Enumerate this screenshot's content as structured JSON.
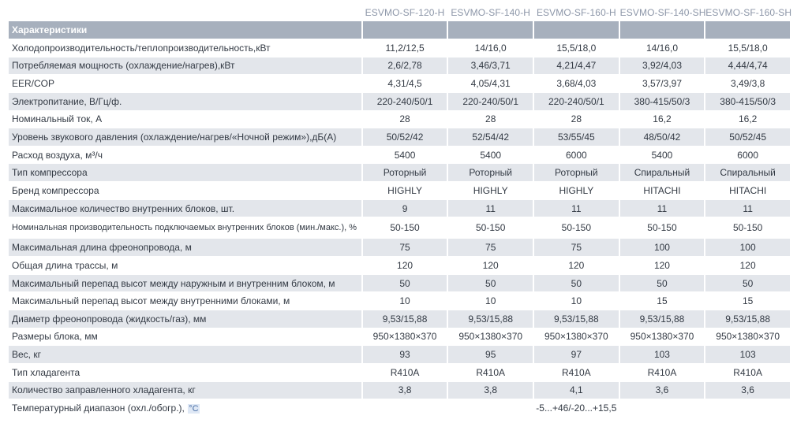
{
  "models": [
    "ESVMO-SF-120-H",
    "ESVMO-SF-140-H",
    "ESVMO-SF-160-H",
    "ESVMO-SF-140-SH",
    "ESVMO-SF-160-SH"
  ],
  "header_label": "Характеристики",
  "rows": [
    {
      "label": "Холодопроизводительность/теплопроизводительность,кВт",
      "values": [
        "11,2/12,5",
        "14/16,0",
        "15,5/18,0",
        "14/16,0",
        "15,5/18,0"
      ]
    },
    {
      "label": "Потребляемая мощность (охлаждение/нагрев),кВт",
      "values": [
        "2,6/2,78",
        "3,46/3,71",
        "4,21/4,47",
        "3,92/4,03",
        "4,44/4,74"
      ]
    },
    {
      "label": "EER/COP",
      "values": [
        "4,31/4,5",
        "4,05/4,31",
        "3,68/4,03",
        "3,57/3,97",
        "3,49/3,8"
      ]
    },
    {
      "label": "Электропитание, В/Гц/ф.",
      "values": [
        "220-240/50/1",
        "220-240/50/1",
        "220-240/50/1",
        "380-415/50/3",
        "380-415/50/3"
      ]
    },
    {
      "label": "Номинальный ток, А",
      "values": [
        "28",
        "28",
        "28",
        "16,2",
        "16,2"
      ]
    },
    {
      "label": "Уровень звукового давления (охлаждение/нагрев/«Ночной режим»),дБ(А)",
      "values": [
        "50/52/42",
        "52/54/42",
        "53/55/45",
        "48/50/42",
        "50/52/45"
      ]
    },
    {
      "label": "Расход воздуха, м³/ч",
      "values": [
        "5400",
        "5400",
        "6000",
        "5400",
        "6000"
      ]
    },
    {
      "label": "Тип компрессора",
      "values": [
        "Роторный",
        "Роторный",
        "Роторный",
        "Спиральный",
        "Спиральный"
      ]
    },
    {
      "label": "Бренд компрессора",
      "values": [
        "HIGHLY",
        "HIGHLY",
        "HIGHLY",
        "HITACHI",
        "HITACHI"
      ]
    },
    {
      "label": "Максимальное количество внутренних блоков, шт.",
      "values": [
        "9",
        "11",
        "11",
        "11",
        "11"
      ]
    },
    {
      "label": "Номинальная производительность подключаемых внутренних блоков (мин./макс.), %",
      "values": [
        "50-150",
        "50-150",
        "50-150",
        "50-150",
        "50-150"
      ]
    },
    {
      "label": "Максимальная длина фреонопровода, м",
      "values": [
        "75",
        "75",
        "75",
        "100",
        "100"
      ]
    },
    {
      "label": "Общая длина трассы, м",
      "values": [
        "120",
        "120",
        "120",
        "120",
        "120"
      ]
    },
    {
      "label": "Максимальный перепад высот между наружным и внутренним блоком, м",
      "values": [
        "50",
        "50",
        "50",
        "50",
        "50"
      ]
    },
    {
      "label": "Максимальный перепад высот между внутренними блоками, м",
      "values": [
        "10",
        "10",
        "10",
        "15",
        "15"
      ]
    },
    {
      "label": "Диаметр фреонопровода (жидкость/газ), мм",
      "values": [
        "9,53/15,88",
        "9,53/15,88",
        "9,53/15,88",
        "9,53/15,88",
        "9,53/15,88"
      ]
    },
    {
      "label": "Размеры блока, мм",
      "values": [
        "950×1380×370",
        "950×1380×370",
        "950×1380×370",
        "950×1380×370",
        "950×1380×370"
      ]
    },
    {
      "label": "Вес, кг",
      "values": [
        "93",
        "95",
        "97",
        "103",
        "103"
      ]
    },
    {
      "label": "Тип хладагента",
      "values": [
        "R410A",
        "R410A",
        "R410A",
        "R410A",
        "R410A"
      ]
    },
    {
      "label": "Количество заправленного хладагента, кг",
      "values": [
        "3,8",
        "3,8",
        "4,1",
        "3,6",
        "3,6"
      ]
    }
  ],
  "temp_row": {
    "label": "Температурный диапазон (охл./обогр.),",
    "unit": "°С",
    "value": "-5...+46/-20...+15,5"
  }
}
